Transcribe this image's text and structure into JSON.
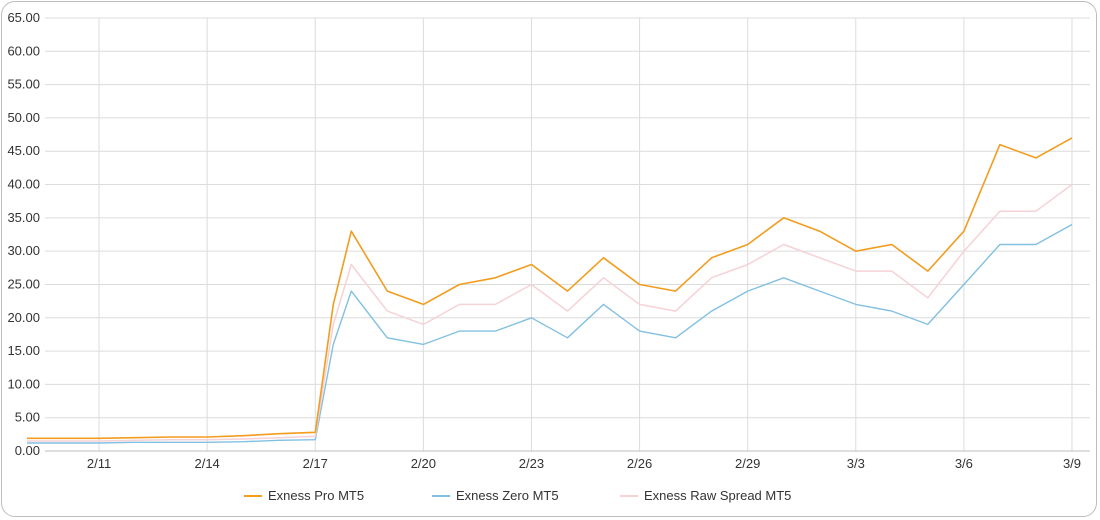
{
  "chart_data": {
    "type": "line",
    "title": "",
    "xlabel": "",
    "ylabel": "",
    "ylim": [
      0,
      65
    ],
    "y_ticks": [
      "0.00",
      "5.00",
      "10.00",
      "15.00",
      "20.00",
      "25.00",
      "30.00",
      "35.00",
      "40.00",
      "45.00",
      "50.00",
      "55.00",
      "60.00",
      "65.00"
    ],
    "x_ticks": [
      "2/11",
      "2/14",
      "2/17",
      "2/20",
      "2/23",
      "2/26",
      "2/29",
      "3/3",
      "3/6",
      "3/9"
    ],
    "grid": true,
    "legend_position": "bottom",
    "x_start": "2/9 12:00",
    "x_end": "3/9 12:00",
    "series": [
      {
        "name": "Exness Pro MT5",
        "color": "#f39c1e",
        "x": [
          "2/9",
          "2/10",
          "2/11",
          "2/12",
          "2/13",
          "2/14",
          "2/15",
          "2/16",
          "2/17",
          "2/17 12:00",
          "2/18",
          "2/19",
          "2/20",
          "2/21",
          "2/22",
          "2/23",
          "2/24",
          "2/25",
          "2/26",
          "2/27",
          "2/28",
          "2/29",
          "3/1",
          "3/2",
          "3/3",
          "3/4",
          "3/5",
          "3/6",
          "3/7",
          "3/8",
          "3/9"
        ],
        "values": [
          1.9,
          1.9,
          1.9,
          2.0,
          2.1,
          2.1,
          2.3,
          2.6,
          2.8,
          22,
          33,
          24,
          22,
          25,
          26,
          28,
          24,
          29,
          25,
          24,
          29,
          31,
          35,
          33,
          30,
          31,
          27,
          33,
          46,
          44,
          47
        ]
      },
      {
        "name": "Exness Zero MT5",
        "color": "#82c0e2",
        "x": [
          "2/9",
          "2/10",
          "2/11",
          "2/12",
          "2/13",
          "2/14",
          "2/15",
          "2/16",
          "2/17",
          "2/17 12:00",
          "2/18",
          "2/19",
          "2/20",
          "2/21",
          "2/22",
          "2/23",
          "2/24",
          "2/25",
          "2/26",
          "2/27",
          "2/28",
          "2/29",
          "3/1",
          "3/2",
          "3/3",
          "3/4",
          "3/5",
          "3/6",
          "3/7",
          "3/8",
          "3/9"
        ],
        "values": [
          1.2,
          1.2,
          1.2,
          1.3,
          1.3,
          1.3,
          1.4,
          1.6,
          1.7,
          16,
          24,
          17,
          16,
          18,
          18,
          20,
          17,
          22,
          18,
          17,
          21,
          24,
          26,
          24,
          22,
          21,
          19,
          25,
          31,
          31,
          34
        ]
      },
      {
        "name": "Exness Raw Spread MT5",
        "color": "#f6d2d6",
        "x": [
          "2/9",
          "2/10",
          "2/11",
          "2/12",
          "2/13",
          "2/14",
          "2/15",
          "2/16",
          "2/17",
          "2/17 12:00",
          "2/18",
          "2/19",
          "2/20",
          "2/21",
          "2/22",
          "2/23",
          "2/24",
          "2/25",
          "2/26",
          "2/27",
          "2/28",
          "2/29",
          "3/1",
          "3/2",
          "3/3",
          "3/4",
          "3/5",
          "3/6",
          "3/7",
          "3/8",
          "3/9"
        ],
        "values": [
          1.5,
          1.5,
          1.5,
          1.6,
          1.7,
          1.7,
          1.8,
          2.0,
          2.2,
          19,
          28,
          21,
          19,
          22,
          22,
          25,
          21,
          26,
          22,
          21,
          26,
          28,
          31,
          29,
          27,
          27,
          23,
          30,
          36,
          36,
          40
        ]
      }
    ]
  }
}
